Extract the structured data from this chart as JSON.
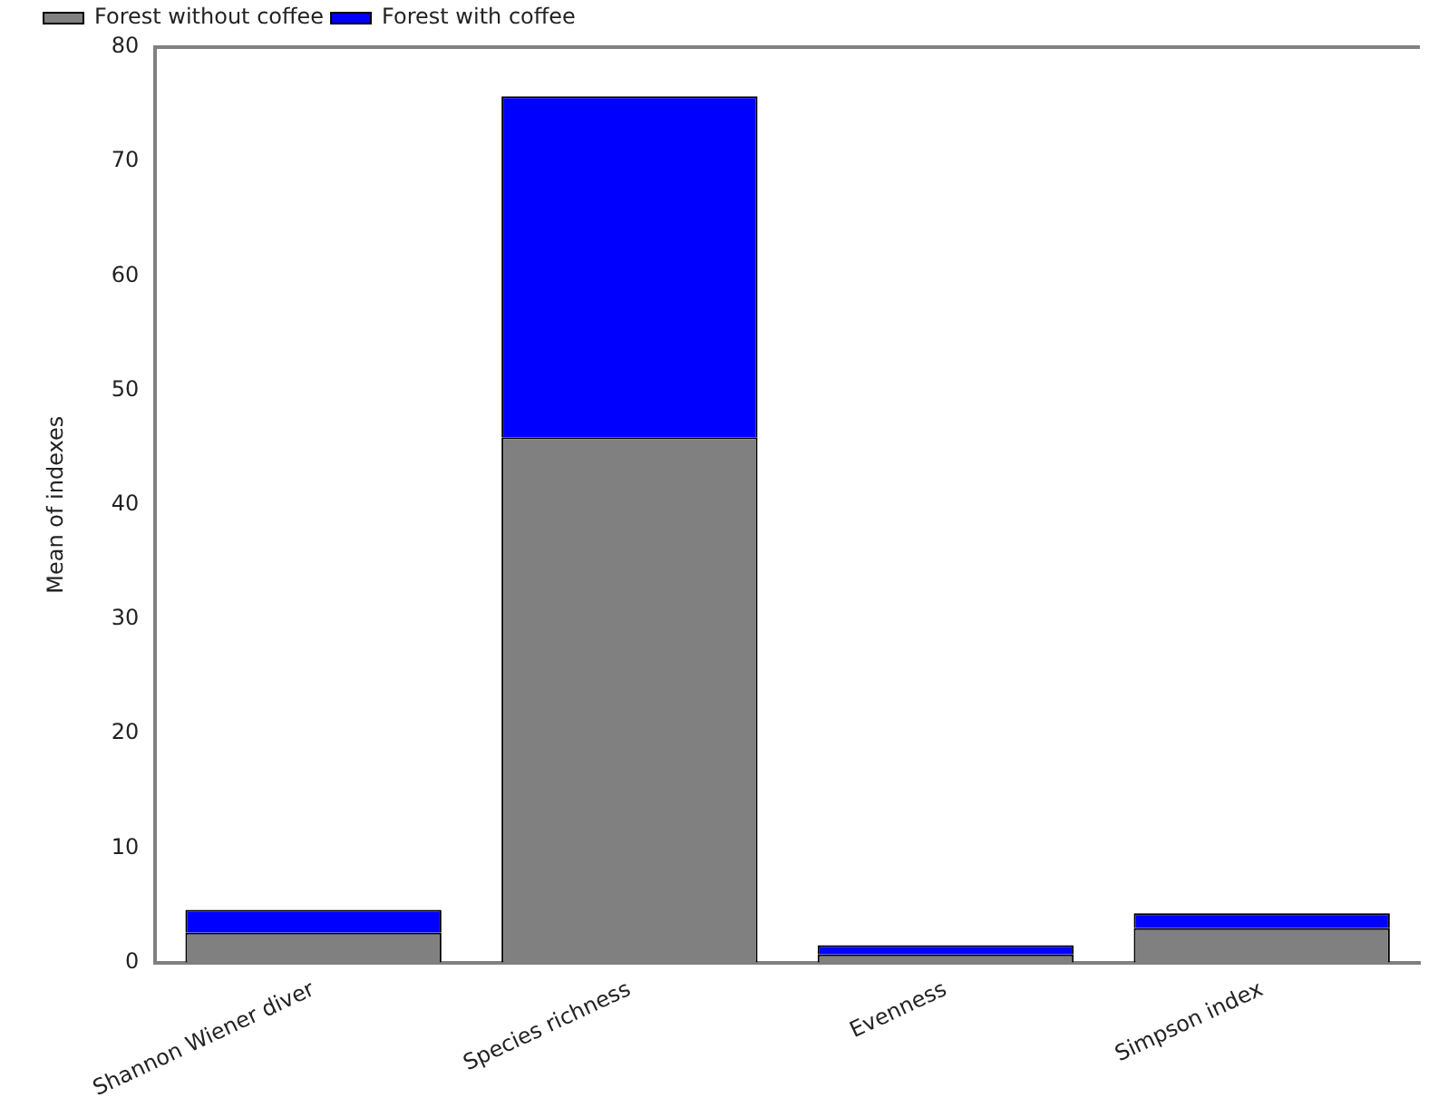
{
  "chart_data": {
    "type": "bar",
    "ylabel": "Mean of indexes",
    "categories": [
      "Shannon Wiener diver",
      "Species richness",
      "Evenness",
      "Simpson index"
    ],
    "series": [
      {
        "name": "Forest without coffee",
        "color": "#808080",
        "values": [
          2.6,
          45.9,
          0.7,
          3.0
        ]
      },
      {
        "name": "Forest with coffee",
        "color": "#0000ff",
        "values": [
          2.0,
          29.8,
          0.8,
          1.3
        ]
      }
    ],
    "stacked": true,
    "ylim": [
      0,
      80
    ],
    "yticks": [
      0,
      10,
      20,
      30,
      40,
      50,
      60,
      70,
      80
    ],
    "grid": false,
    "legend": "top left"
  }
}
